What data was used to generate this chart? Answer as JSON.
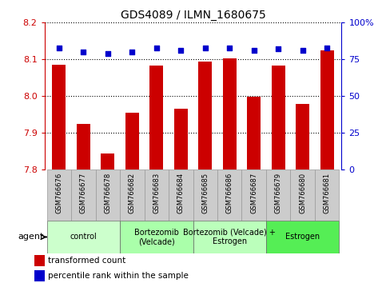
{
  "title": "GDS4089 / ILMN_1680675",
  "samples": [
    "GSM766676",
    "GSM766677",
    "GSM766678",
    "GSM766682",
    "GSM766683",
    "GSM766684",
    "GSM766685",
    "GSM766686",
    "GSM766687",
    "GSM766679",
    "GSM766680",
    "GSM766681"
  ],
  "bar_values": [
    8.085,
    7.925,
    7.845,
    7.955,
    8.083,
    7.965,
    8.095,
    8.103,
    7.998,
    8.083,
    7.98,
    8.125
  ],
  "dot_values": [
    83,
    80,
    79,
    80,
    83,
    81,
    83,
    83,
    81,
    82,
    81,
    83
  ],
  "ylim_left": [
    7.8,
    8.2
  ],
  "ylim_right": [
    0,
    100
  ],
  "yticks_left": [
    7.8,
    7.9,
    8.0,
    8.1,
    8.2
  ],
  "yticks_right": [
    0,
    25,
    50,
    75,
    100
  ],
  "ytick_right_labels": [
    "0",
    "25",
    "50",
    "75",
    "100%"
  ],
  "bar_color": "#cc0000",
  "dot_color": "#0000cc",
  "grid_lines": [
    7.9,
    8.0,
    8.1
  ],
  "agent_groups": [
    {
      "label": "control",
      "start": 0,
      "end": 3,
      "color": "#ccffcc"
    },
    {
      "label": "Bortezomib\n(Velcade)",
      "start": 3,
      "end": 6,
      "color": "#aaffaa"
    },
    {
      "label": "Bortezomib (Velcade) +\nEstrogen",
      "start": 6,
      "end": 9,
      "color": "#bbffbb"
    },
    {
      "label": "Estrogen",
      "start": 9,
      "end": 12,
      "color": "#55ee55"
    }
  ],
  "legend_red_label": "transformed count",
  "legend_blue_label": "percentile rank within the sample",
  "agent_label": "agent",
  "left_tick_color": "#cc0000",
  "right_tick_color": "#0000cc",
  "bar_width": 0.55,
  "sample_box_color": "#cccccc",
  "sample_box_edge": "#999999"
}
